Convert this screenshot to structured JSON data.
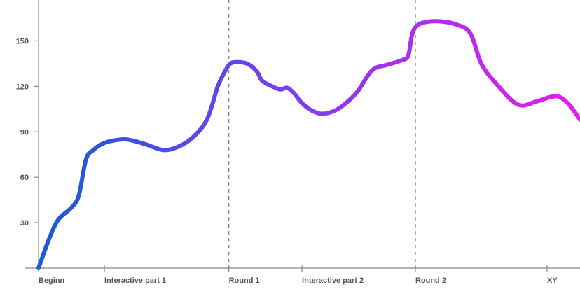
{
  "chart_data": {
    "type": "line",
    "title": "",
    "xlabel": "",
    "ylabel": "",
    "ylim": [
      0,
      177
    ],
    "y_ticks": [
      30,
      60,
      90,
      120,
      150
    ],
    "x_range": [
      0,
      7.4
    ],
    "x_ticks": [
      {
        "x": 0,
        "label": "Beginn"
      },
      {
        "x": 0.9,
        "label": "Interactive part 1"
      },
      {
        "x": 2.6,
        "label": "Round 1"
      },
      {
        "x": 3.6,
        "label": "Interactive part 2"
      },
      {
        "x": 5.15,
        "label": "Round 2"
      },
      {
        "x": 6.95,
        "label": "XY"
      }
    ],
    "phase_dividers": [
      2.6,
      5.15
    ],
    "grid": false,
    "legend": "none",
    "gradient_colors": [
      "#0a60d0",
      "#7d3ef0",
      "#e61cf0"
    ],
    "series": [
      {
        "x": [
          0,
          0.15,
          0.27,
          0.45,
          0.55,
          0.65,
          0.75,
          0.87,
          1.0,
          1.2,
          1.45,
          1.7,
          1.9,
          2.1,
          2.3,
          2.45,
          2.55,
          2.62,
          2.72,
          2.85,
          2.98,
          3.05,
          3.15,
          3.3,
          3.4,
          3.5,
          3.58,
          3.7,
          3.85,
          4.0,
          4.15,
          4.35,
          4.5,
          4.6,
          4.75,
          4.95,
          5.05,
          5.1,
          5.15,
          5.25,
          5.45,
          5.7,
          5.9,
          6.05,
          6.25,
          6.55,
          6.8,
          7.0,
          7.12,
          7.25,
          7.4
        ],
        "values": [
          0,
          20,
          32,
          40,
          48,
          72,
          78,
          82,
          84,
          85,
          82,
          78,
          80,
          86,
          98,
          120,
          130,
          135,
          136,
          135,
          130,
          124,
          121,
          118,
          119,
          115,
          110,
          105,
          102,
          103,
          107,
          116,
          127,
          132,
          134,
          137,
          140,
          153,
          159,
          162,
          163,
          161,
          155,
          135,
          122,
          108,
          110,
          113,
          113,
          108,
          98
        ]
      }
    ]
  }
}
